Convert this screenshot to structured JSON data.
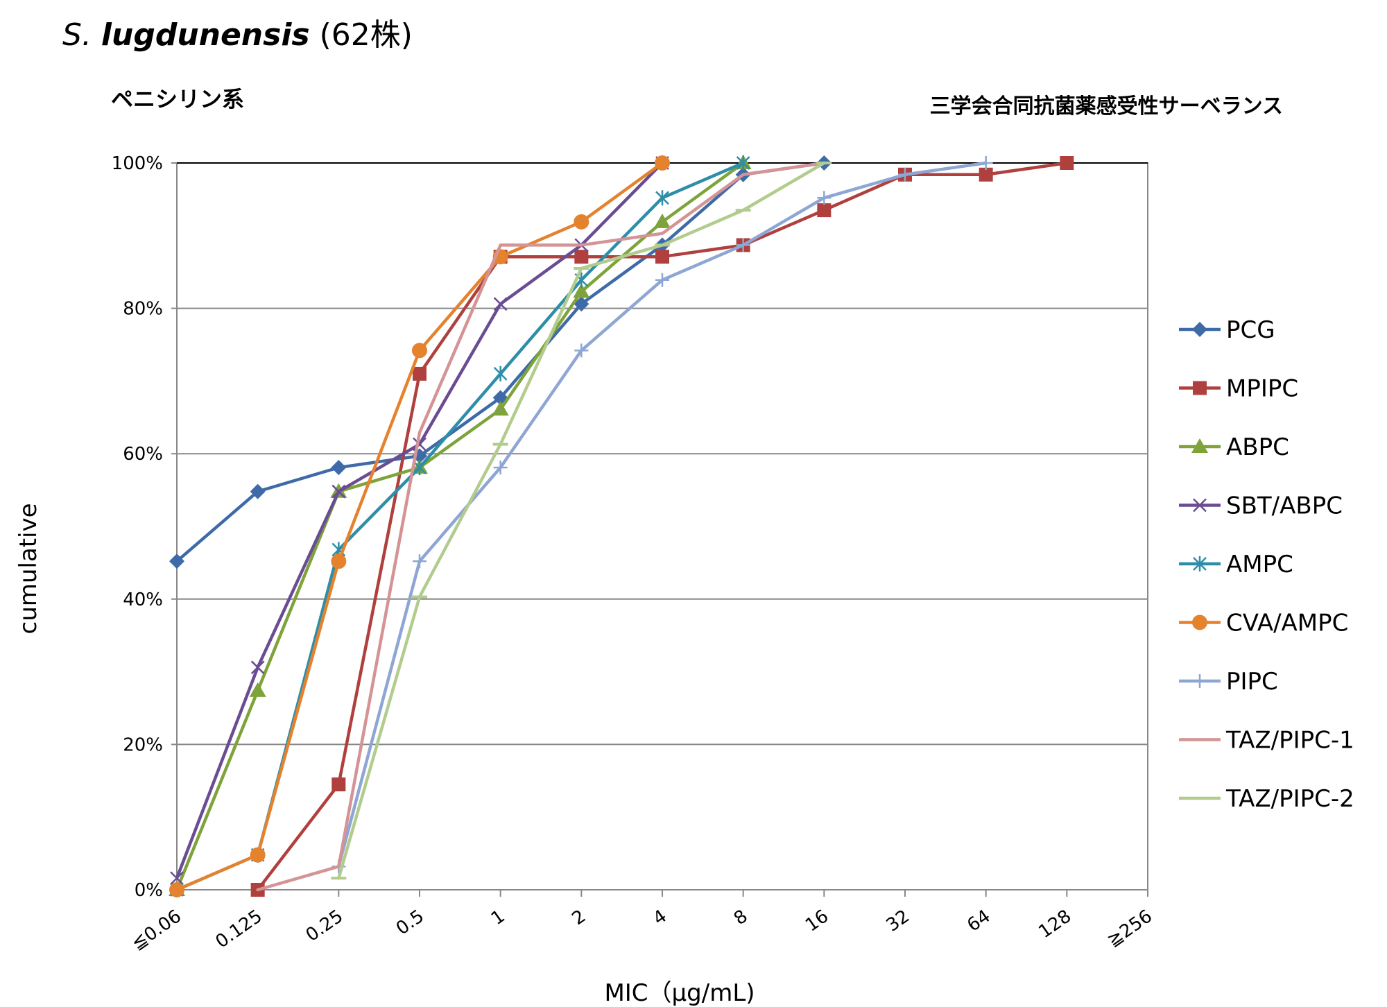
{
  "header": {
    "genus": "S.",
    "epithet": "lugdunensis",
    "count": "(62株)",
    "category": "ペニシリン系",
    "source": "三学会合同抗菌薬感受性サーベランス"
  },
  "chart_data": {
    "type": "line",
    "xlabel": "MIC（μg/mL)",
    "ylabel": "cumulative",
    "categories": [
      "≦0.06",
      "0.125",
      "0.25",
      "0.5",
      "1",
      "2",
      "4",
      "8",
      "16",
      "32",
      "64",
      "128",
      "≧256"
    ],
    "ylim": [
      0,
      100
    ],
    "yticks": [
      "0%",
      "20%",
      "40%",
      "60%",
      "80%",
      "100%"
    ],
    "grid": true,
    "legend_position": "right",
    "series": [
      {
        "name": "PCG",
        "color": "#3e6aa8",
        "marker": "diamond",
        "values": [
          45.2,
          54.8,
          58.1,
          59.7,
          67.7,
          80.6,
          88.7,
          98.4,
          100,
          null,
          null,
          null,
          null
        ]
      },
      {
        "name": "MPIPC",
        "color": "#b0403e",
        "marker": "square",
        "values": [
          null,
          0,
          14.5,
          71.0,
          87.1,
          87.1,
          87.1,
          88.7,
          93.5,
          98.4,
          98.4,
          100,
          null
        ]
      },
      {
        "name": "ABPC",
        "color": "#7ea33a",
        "marker": "triangle",
        "values": [
          0,
          27.4,
          54.8,
          58.1,
          66.1,
          82.3,
          91.9,
          100,
          null,
          null,
          null,
          null,
          null
        ]
      },
      {
        "name": "SBT/ABPC",
        "color": "#6a4c93",
        "marker": "x",
        "values": [
          1.6,
          30.6,
          54.8,
          61.3,
          80.6,
          88.7,
          100,
          null,
          null,
          null,
          null,
          null,
          null
        ]
      },
      {
        "name": "AMPC",
        "color": "#2e8da8",
        "marker": "asterisk",
        "values": [
          0,
          4.8,
          46.8,
          58.1,
          71.0,
          83.9,
          95.2,
          100,
          null,
          null,
          null,
          null,
          null
        ]
      },
      {
        "name": "CVA/AMPC",
        "color": "#e4822e",
        "marker": "circle",
        "values": [
          0,
          4.8,
          45.2,
          74.2,
          87.1,
          91.9,
          100,
          null,
          null,
          null,
          null,
          null,
          null
        ]
      },
      {
        "name": "PIPC",
        "color": "#8ea6d3",
        "marker": "plus",
        "values": [
          null,
          null,
          3.2,
          45.2,
          58.1,
          74.2,
          83.9,
          88.7,
          95.2,
          98.4,
          100,
          null,
          null
        ]
      },
      {
        "name": "TAZ/PIPC-1",
        "color": "#d49495",
        "marker": "none",
        "values": [
          null,
          0,
          3.2,
          62.9,
          88.7,
          88.7,
          90.3,
          98.4,
          100,
          null,
          null,
          null,
          null
        ]
      },
      {
        "name": "TAZ/PIPC-2",
        "color": "#b2cc8d",
        "marker": "dash",
        "values": [
          null,
          null,
          1.6,
          40.3,
          61.3,
          85.5,
          88.7,
          93.5,
          100,
          null,
          null,
          null,
          null
        ]
      }
    ]
  }
}
